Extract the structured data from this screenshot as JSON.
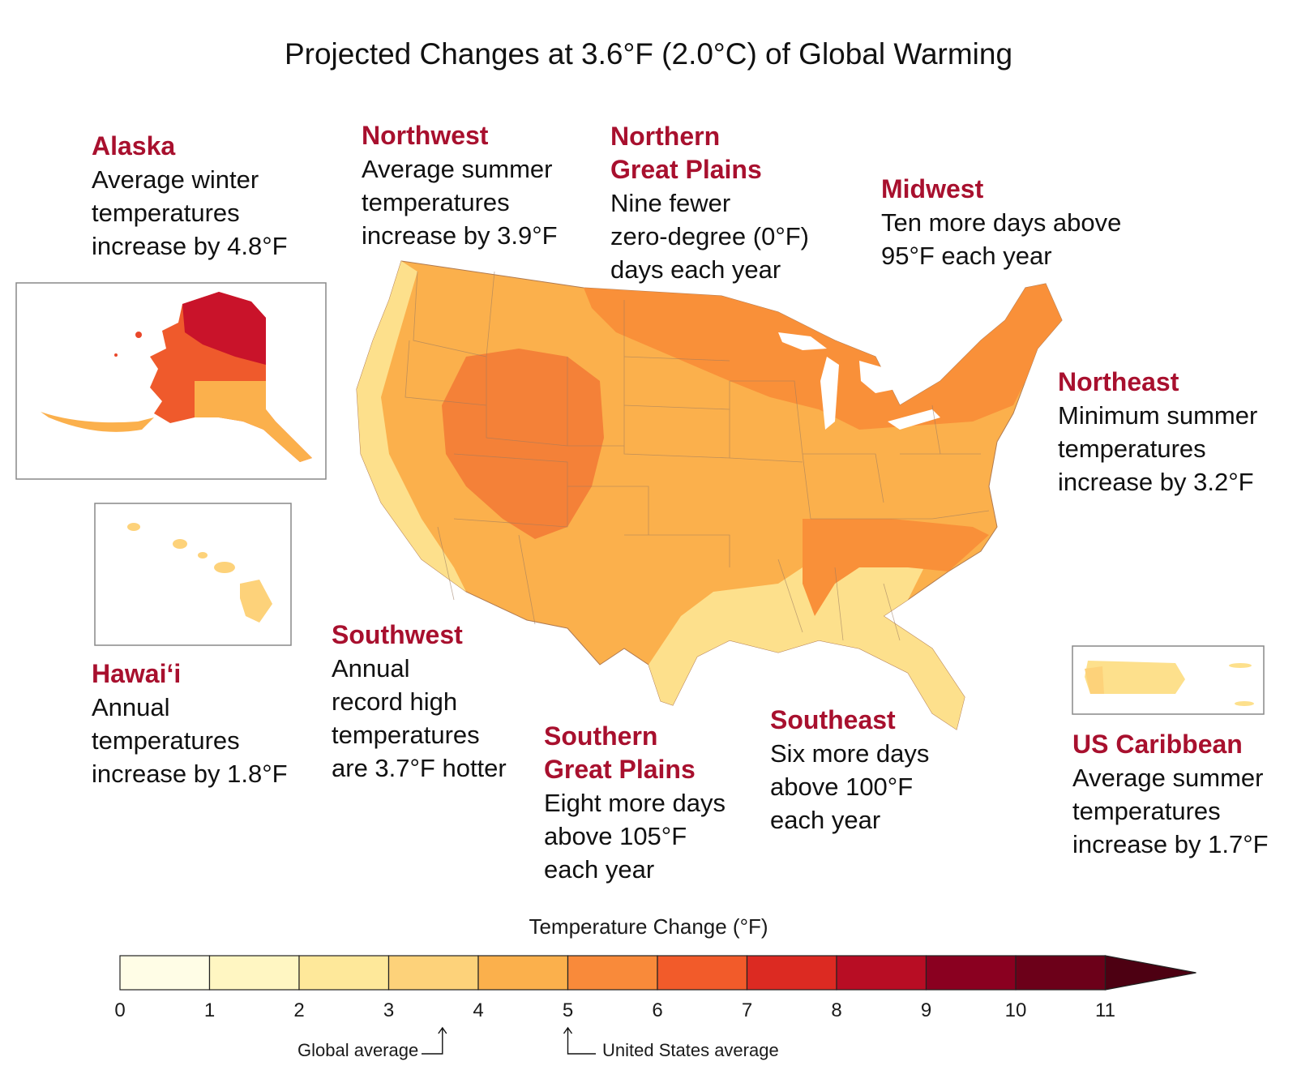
{
  "title": "Projected Changes at 3.6°F (2.0°C) of Global Warming",
  "regions": {
    "alaska": {
      "name": "Alaska",
      "desc": "Average winter\ntemperatures\nincrease by 4.8°F"
    },
    "northwest": {
      "name": "Northwest",
      "desc": "Average summer\ntemperatures\nincrease by 3.9°F"
    },
    "ngp": {
      "name": "Northern\nGreat Plains",
      "desc": "Nine fewer\nzero-degree (0°F)\ndays each year"
    },
    "midwest": {
      "name": "Midwest",
      "desc": "Ten more days above\n95°F each year"
    },
    "northeast": {
      "name": "Northeast",
      "desc": "Minimum summer\ntemperatures\nincrease by 3.2°F"
    },
    "hawaii": {
      "name": "Hawai‘i",
      "desc": "Annual\ntemperatures\nincrease by 1.8°F"
    },
    "southwest": {
      "name": "Southwest",
      "desc": "Annual\nrecord high\ntemperatures\nare 3.7°F hotter"
    },
    "sgp": {
      "name": "Southern\nGreat Plains",
      "desc": "Eight more days\nabove 105°F\neach year"
    },
    "southeast": {
      "name": "Southeast",
      "desc": "Six more days\nabove 100°F\neach year"
    },
    "caribbean": {
      "name": "US Caribbean",
      "desc": "Average summer\ntemperatures\nincrease by 1.7°F"
    }
  },
  "legend": {
    "title": "Temperature Change (°F)",
    "ticks": [
      "0",
      "1",
      "2",
      "3",
      "4",
      "5",
      "6",
      "7",
      "8",
      "9",
      "10",
      "11"
    ],
    "colors": [
      "#fffde6",
      "#fff6c2",
      "#fee89a",
      "#fdd27a",
      "#fbb04c",
      "#f98a3a",
      "#f25b2a",
      "#dc2a22",
      "#b80d24",
      "#8a0020",
      "#6c0019"
    ],
    "arrow_color": "#4d0012",
    "global_average_label": "Global average",
    "us_average_label": "United States average",
    "global_average_value": 3.6,
    "us_average_value": 5.0
  },
  "colors": {
    "region_name": "#a8102e",
    "light": "#fde08c",
    "mid": "#fbb44e",
    "orange": "#f99039",
    "dark": "#e9472a"
  }
}
